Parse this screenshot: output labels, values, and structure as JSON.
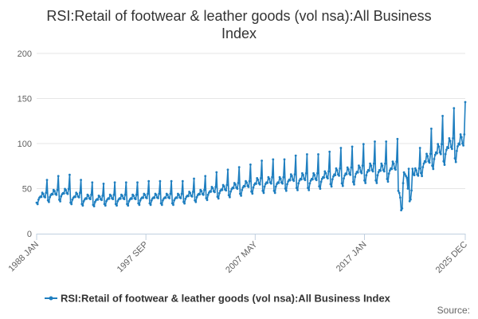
{
  "chart_data": {
    "type": "line",
    "title_lines": [
      "RSI:Retail of footwear & leather goods (vol nsa):All Business",
      "Index"
    ],
    "xlabel": "",
    "ylabel": "",
    "ylim": [
      0,
      200
    ],
    "yticks": [
      "0",
      "50",
      "100",
      "150",
      "200"
    ],
    "x_tick_labels": [
      "1988 JAN",
      "1997 SEP",
      "2007 MAY",
      "2017 JAN",
      "2025 DEC"
    ],
    "x_range": [
      "1988-01",
      "2025-12"
    ],
    "grid": true,
    "legend_position": "bottom",
    "colors": {
      "series": "#1f7fc0",
      "grid": "#e6e6e6",
      "axis": "#c0d0e0"
    },
    "series": [
      {
        "name": "RSI:Retail of footwear & leather goods (vol nsa):All Business Index",
        "annual_levels": [
          {
            "year": 1988,
            "value": 42
          },
          {
            "year": 1989,
            "value": 45
          },
          {
            "year": 1990,
            "value": 46
          },
          {
            "year": 1991,
            "value": 42
          },
          {
            "year": 1992,
            "value": 40
          },
          {
            "year": 1993,
            "value": 39
          },
          {
            "year": 1994,
            "value": 40
          },
          {
            "year": 1995,
            "value": 40
          },
          {
            "year": 1996,
            "value": 40
          },
          {
            "year": 1997,
            "value": 41
          },
          {
            "year": 1998,
            "value": 41
          },
          {
            "year": 1999,
            "value": 41
          },
          {
            "year": 2000,
            "value": 41
          },
          {
            "year": 2001,
            "value": 43
          },
          {
            "year": 2002,
            "value": 45
          },
          {
            "year": 2003,
            "value": 48
          },
          {
            "year": 2004,
            "value": 50
          },
          {
            "year": 2005,
            "value": 52
          },
          {
            "year": 2006,
            "value": 54
          },
          {
            "year": 2007,
            "value": 57
          },
          {
            "year": 2008,
            "value": 58
          },
          {
            "year": 2009,
            "value": 58
          },
          {
            "year": 2010,
            "value": 61
          },
          {
            "year": 2011,
            "value": 62
          },
          {
            "year": 2012,
            "value": 62
          },
          {
            "year": 2013,
            "value": 64
          },
          {
            "year": 2014,
            "value": 67
          },
          {
            "year": 2015,
            "value": 68
          },
          {
            "year": 2016,
            "value": 70
          },
          {
            "year": 2017,
            "value": 72
          },
          {
            "year": 2018,
            "value": 72
          },
          {
            "year": 2019,
            "value": 74
          },
          {
            "year": 2020,
            "value": 58
          },
          {
            "year": 2021,
            "value": 67
          },
          {
            "year": 2022,
            "value": 82
          },
          {
            "year": 2023,
            "value": 92
          },
          {
            "year": 2024,
            "value": 98
          },
          {
            "year": 2025,
            "value": 102
          }
        ],
        "seasonal_factors": [
          0.82,
          0.78,
          0.9,
          0.95,
          0.98,
          0.97,
          1.08,
          1.05,
          0.98,
          0.96,
          1.08,
          1.42
        ],
        "overrides": [
          {
            "date": "2020-03",
            "value": 40
          },
          {
            "date": "2020-04",
            "value": 26
          },
          {
            "date": "2020-05",
            "value": 28
          },
          {
            "date": "2020-06",
            "value": 56
          },
          {
            "date": "2020-07",
            "value": 68
          },
          {
            "date": "2020-08",
            "value": 66
          },
          {
            "date": "2020-09",
            "value": 64
          },
          {
            "date": "2020-10",
            "value": 62
          },
          {
            "date": "2020-11",
            "value": 50
          },
          {
            "date": "2020-12",
            "value": 72
          },
          {
            "date": "2021-01",
            "value": 36
          },
          {
            "date": "2021-02",
            "value": 38
          },
          {
            "date": "2021-03",
            "value": 48
          },
          {
            "date": "2021-04",
            "value": 72
          },
          {
            "date": "2025-12",
            "value": 146
          }
        ]
      }
    ]
  },
  "credits": "Source:"
}
